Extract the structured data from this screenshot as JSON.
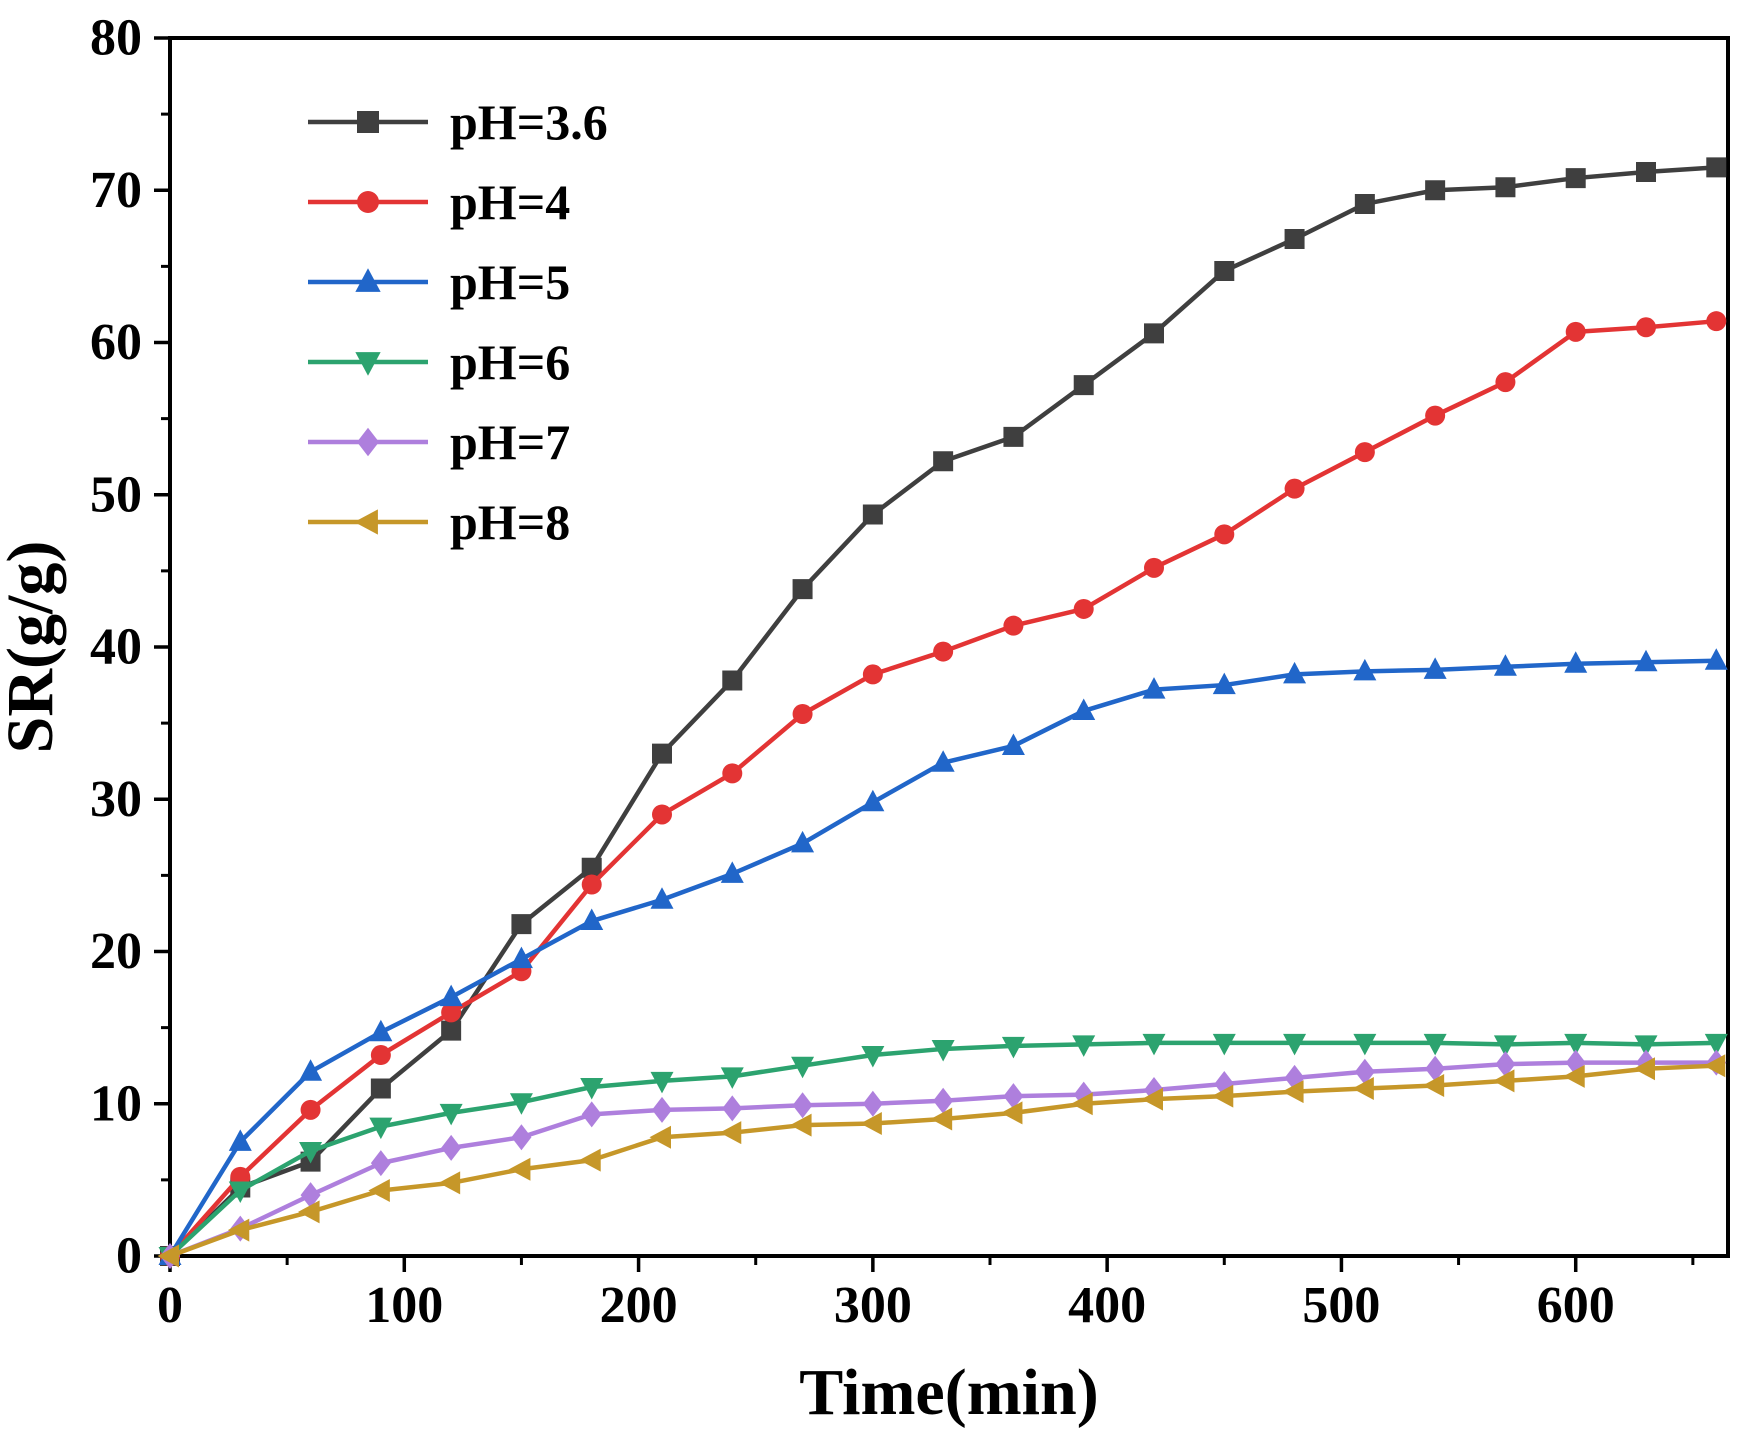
{
  "figure": {
    "xlabel": "Time(min)",
    "ylabel": "SR(g/g)"
  },
  "chart_data": {
    "type": "line",
    "title": "",
    "xlabel": "Time(min)",
    "ylabel": "SR(g/g)",
    "xlim": [
      0,
      665
    ],
    "ylim": [
      0,
      80
    ],
    "xticks": [
      0,
      100,
      200,
      300,
      400,
      500,
      600
    ],
    "yticks": [
      0,
      10,
      20,
      30,
      40,
      50,
      60,
      70,
      80
    ],
    "xminor": 50,
    "yminor": 5,
    "grid": false,
    "legend_position": "top-left-inside",
    "x": [
      0,
      30,
      60,
      90,
      120,
      150,
      180,
      210,
      240,
      270,
      300,
      330,
      360,
      390,
      420,
      450,
      480,
      510,
      540,
      570,
      600,
      630,
      660
    ],
    "series": [
      {
        "name": "pH=3.6",
        "color": "#3f3f3f",
        "marker": "square",
        "values": [
          0,
          4.5,
          6.2,
          11.0,
          14.8,
          21.8,
          25.5,
          33.0,
          37.8,
          43.8,
          48.7,
          52.2,
          53.8,
          57.2,
          60.6,
          64.7,
          66.8,
          69.1,
          70.0,
          70.2,
          70.8,
          71.2,
          71.5
        ]
      },
      {
        "name": "pH=4",
        "color": "#e33434",
        "marker": "circle",
        "values": [
          0,
          5.2,
          9.6,
          13.2,
          16.0,
          18.7,
          24.4,
          29.0,
          31.7,
          35.6,
          38.2,
          39.7,
          41.4,
          42.5,
          45.2,
          47.4,
          50.4,
          52.8,
          55.2,
          57.4,
          60.7,
          61.0,
          61.4
        ]
      },
      {
        "name": "pH=5",
        "color": "#2166c9",
        "marker": "triangle-up",
        "values": [
          0,
          7.5,
          12.1,
          14.7,
          17.0,
          19.5,
          22.0,
          23.4,
          25.1,
          27.1,
          29.8,
          32.4,
          33.5,
          35.8,
          37.2,
          37.5,
          38.2,
          38.4,
          38.5,
          38.7,
          38.9,
          39.0,
          39.1
        ]
      },
      {
        "name": "pH=6",
        "color": "#2ca36f",
        "marker": "triangle-down",
        "values": [
          0,
          4.3,
          6.9,
          8.5,
          9.4,
          10.1,
          11.1,
          11.5,
          11.8,
          12.5,
          13.2,
          13.6,
          13.8,
          13.9,
          14.0,
          14.0,
          14.0,
          14.0,
          14.0,
          13.9,
          14.0,
          13.9,
          14.0
        ]
      },
      {
        "name": "pH=7",
        "color": "#ae7fdd",
        "marker": "diamond",
        "values": [
          0,
          1.8,
          4.0,
          6.1,
          7.1,
          7.8,
          9.3,
          9.6,
          9.7,
          9.9,
          10.0,
          10.2,
          10.5,
          10.6,
          10.9,
          11.3,
          11.7,
          12.1,
          12.3,
          12.6,
          12.7,
          12.7,
          12.7
        ]
      },
      {
        "name": "pH=8",
        "color": "#c69729",
        "marker": "triangle-left",
        "values": [
          0,
          1.7,
          2.9,
          4.3,
          4.8,
          5.7,
          6.3,
          7.8,
          8.1,
          8.6,
          8.7,
          9.0,
          9.4,
          10.0,
          10.3,
          10.5,
          10.8,
          11.0,
          11.2,
          11.5,
          11.8,
          12.3,
          12.5
        ]
      }
    ]
  }
}
